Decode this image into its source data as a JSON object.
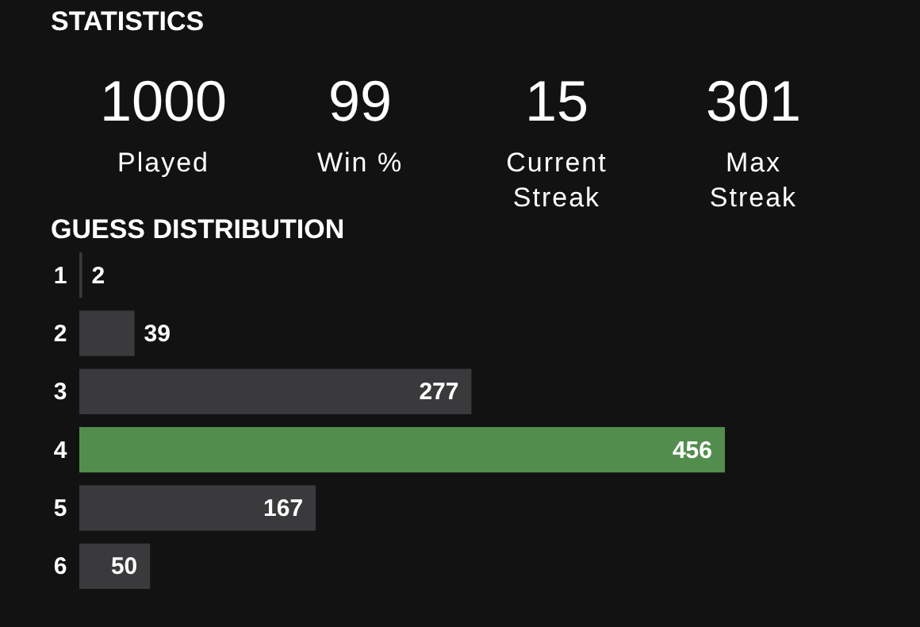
{
  "chart_data": [
    {
      "type": "other",
      "title": "STATISTICS",
      "annotations": [
        "1000",
        "Played",
        "99",
        "Win %",
        "15",
        "Current Streak",
        "301",
        "Max Streak"
      ]
    },
    {
      "type": "bar",
      "orientation": "horizontal",
      "title": "GUESS DISTRIBUTION",
      "categories": [
        "1",
        "2",
        "3",
        "4",
        "5",
        "6"
      ],
      "values": [
        2,
        39,
        277,
        456,
        167,
        50
      ],
      "colors": [
        "#3a3a3c",
        "#3a3a3c",
        "#3a3a3c",
        "#538d4e",
        "#3a3a3c",
        "#3a3a3c"
      ],
      "data_labels": true
    }
  ]
}
